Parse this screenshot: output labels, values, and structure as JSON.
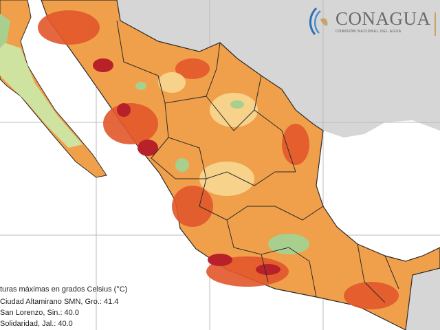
{
  "logo": {
    "name": "CONAGUA",
    "subtitle": "COMISIÓN NACIONAL DEL AGUA"
  },
  "legend": {
    "title": "turas máximas en grados Celsius (°C)",
    "stations": [
      "Ciudad Altamirano SMN, Gro.: 41.4",
      "San Lorenzo, Sin.: 40.0",
      "Solidaridad, Jal.: 40.0"
    ]
  },
  "colors": {
    "ocean": "#ffffff",
    "foreign_land": "#d6d6d6",
    "warm": "#f0a04b",
    "hot": "#e2572b",
    "very_hot": "#b8202a",
    "mild": "#f6d28a",
    "cool": "#a8cf8e",
    "borders": "#2a2a2a"
  }
}
